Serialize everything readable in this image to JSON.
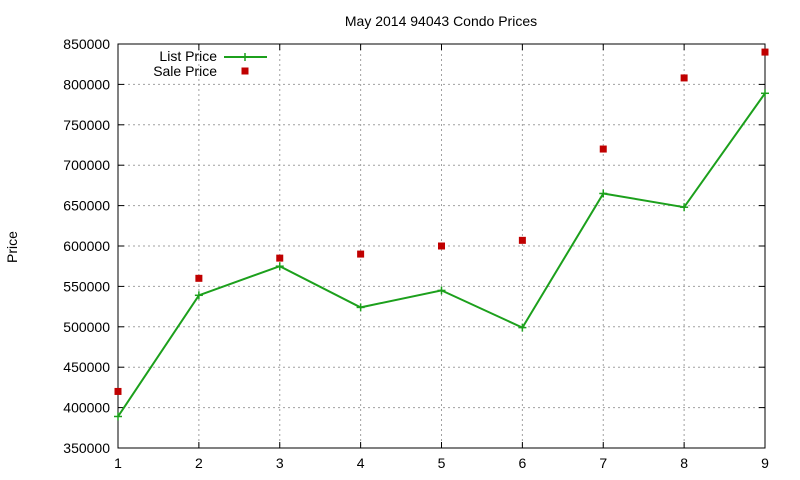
{
  "chart_data": {
    "type": "line",
    "title": "May 2014 94043 Condo Prices",
    "xlabel": "",
    "ylabel": "Price",
    "x": [
      1,
      2,
      3,
      4,
      5,
      6,
      7,
      8,
      9
    ],
    "xlim": [
      1,
      9
    ],
    "ylim": [
      350000,
      850000
    ],
    "xticks": [
      "1",
      "2",
      "3",
      "4",
      "5",
      "6",
      "7",
      "8",
      "9"
    ],
    "yticks": [
      "350000",
      "400000",
      "450000",
      "500000",
      "550000",
      "600000",
      "650000",
      "700000",
      "750000",
      "800000",
      "850000"
    ],
    "grid": true,
    "legend_position": "top-left",
    "series": [
      {
        "name": "List Price",
        "style": "line-with-plus-markers",
        "color": "#1ca01c",
        "values": [
          389000,
          539000,
          575000,
          524000,
          545000,
          499000,
          665000,
          648000,
          789000
        ]
      },
      {
        "name": "Sale Price",
        "style": "square-markers",
        "color": "#c00000",
        "values": [
          420000,
          560000,
          585000,
          590000,
          600000,
          607000,
          720000,
          808000,
          840000
        ]
      }
    ]
  }
}
